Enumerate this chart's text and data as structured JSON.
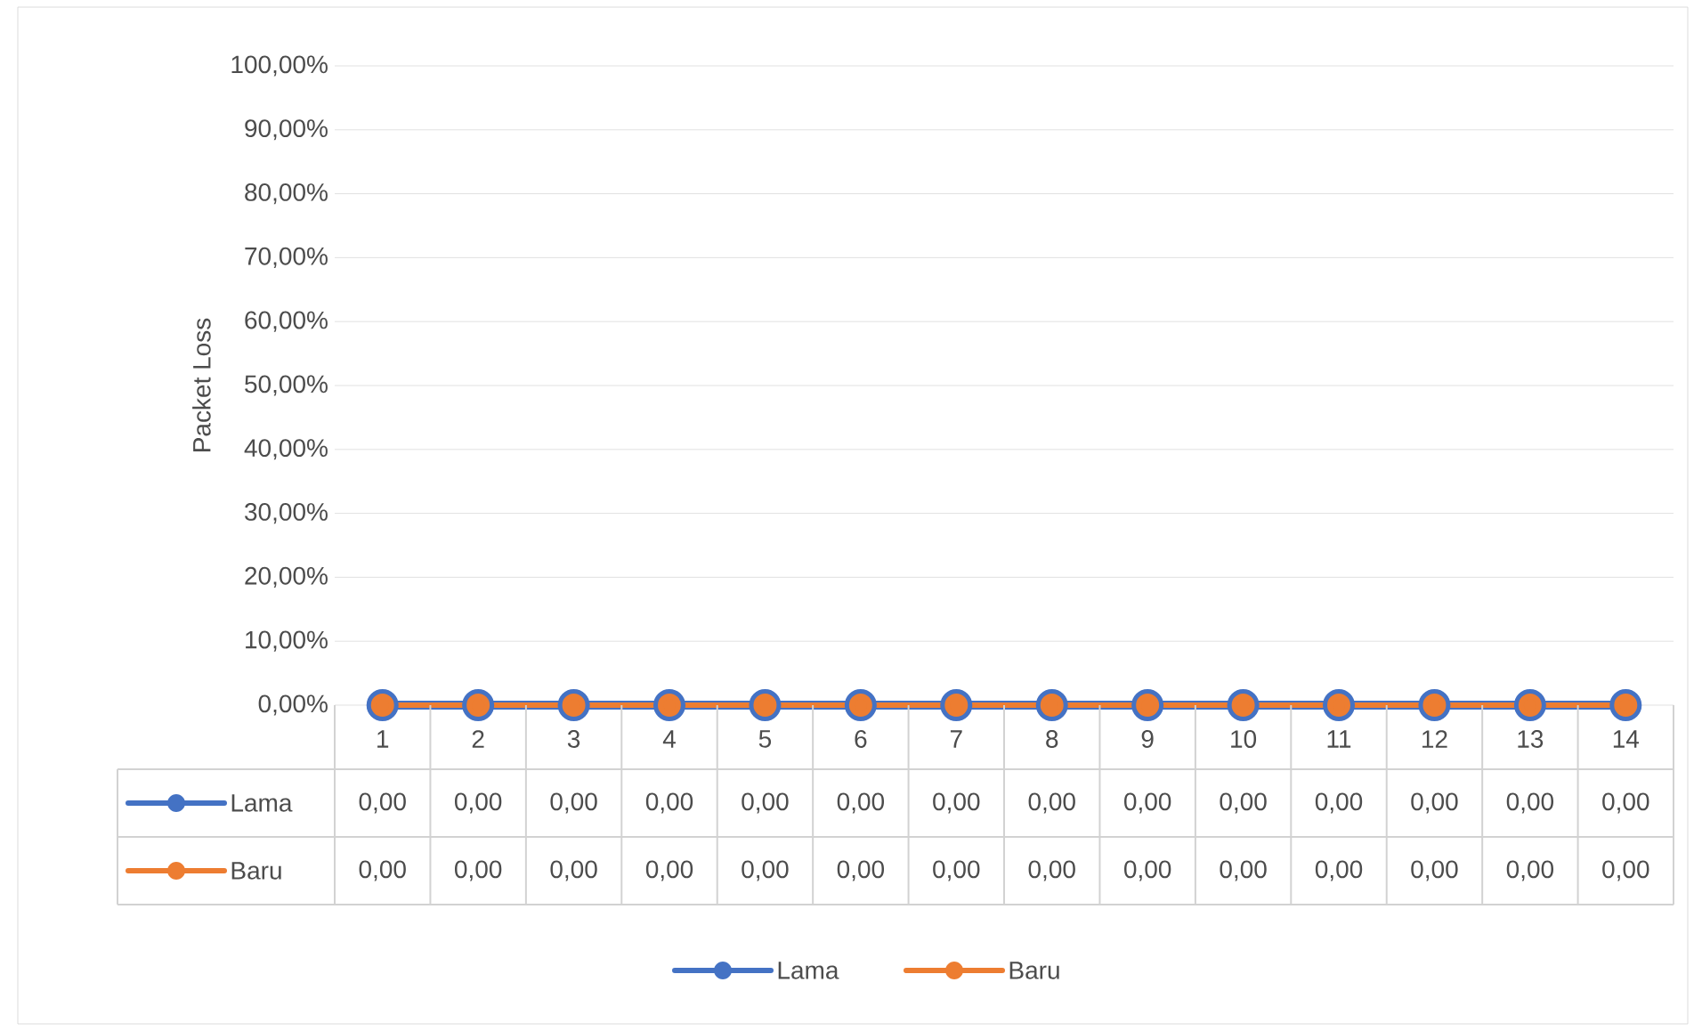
{
  "chart_data": {
    "type": "line",
    "ylabel": "Packet Loss",
    "categories": [
      "1",
      "2",
      "3",
      "4",
      "5",
      "6",
      "7",
      "8",
      "9",
      "10",
      "11",
      "12",
      "13",
      "14"
    ],
    "series": [
      {
        "name": "Lama",
        "color": "#4472c4",
        "values": [
          0,
          0,
          0,
          0,
          0,
          0,
          0,
          0,
          0,
          0,
          0,
          0,
          0,
          0
        ],
        "value_labels": [
          "0,00",
          "0,00",
          "0,00",
          "0,00",
          "0,00",
          "0,00",
          "0,00",
          "0,00",
          "0,00",
          "0,00",
          "0,00",
          "0,00",
          "0,00",
          "0,00"
        ]
      },
      {
        "name": "Baru",
        "color": "#ed7d31",
        "values": [
          0,
          0,
          0,
          0,
          0,
          0,
          0,
          0,
          0,
          0,
          0,
          0,
          0,
          0
        ],
        "value_labels": [
          "0,00",
          "0,00",
          "0,00",
          "0,00",
          "0,00",
          "0,00",
          "0,00",
          "0,00",
          "0,00",
          "0,00",
          "0,00",
          "0,00",
          "0,00",
          "0,00"
        ]
      }
    ],
    "ylim": [
      0,
      100
    ],
    "yticks": [
      {
        "value": 0,
        "label": "0,00%"
      },
      {
        "value": 10,
        "label": "10,00%"
      },
      {
        "value": 20,
        "label": "20,00%"
      },
      {
        "value": 30,
        "label": "30,00%"
      },
      {
        "value": 40,
        "label": "40,00%"
      },
      {
        "value": 50,
        "label": "50,00%"
      },
      {
        "value": 60,
        "label": "60,00%"
      },
      {
        "value": 70,
        "label": "70,00%"
      },
      {
        "value": 80,
        "label": "80,00%"
      },
      {
        "value": 90,
        "label": "90,00%"
      },
      {
        "value": 100,
        "label": "100,00%"
      }
    ],
    "grid": "y",
    "legend": "bottom",
    "marker": "circle",
    "line_style": "solid"
  }
}
